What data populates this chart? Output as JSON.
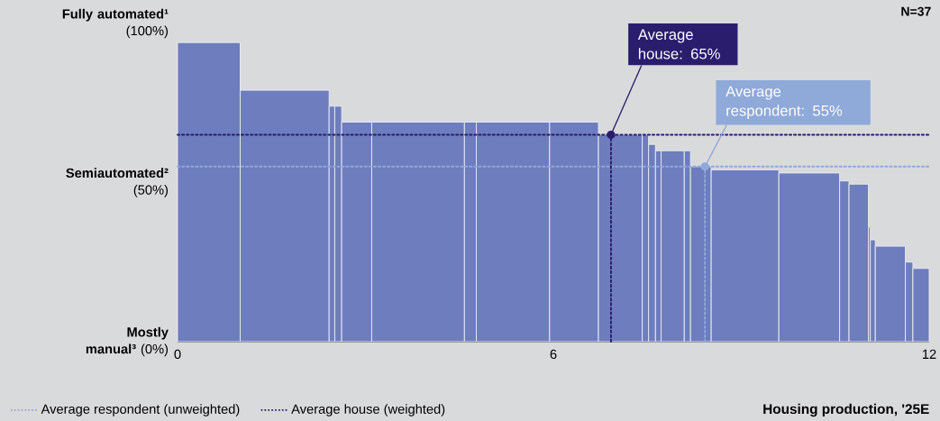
{
  "chart_data": {
    "type": "histogram",
    "bins": [
      0,
      1.0,
      2.42,
      2.51,
      2.62,
      3.1,
      4.58,
      4.77,
      5.94,
      6.72,
      7.42,
      7.52,
      7.63,
      7.72,
      8.09,
      8.19,
      8.52,
      9.6,
      10.57,
      10.72,
      11.03,
      11.06,
      11.14,
      11.62,
      11.74,
      12
    ],
    "values": [
      94,
      79,
      74,
      74,
      69,
      69,
      69,
      69,
      69,
      65,
      65,
      62,
      60,
      60,
      60,
      55,
      54,
      53,
      50.5,
      49.5,
      36,
      32,
      30,
      25,
      23
    ],
    "color": "#6d7dbd",
    "xlabel": "Housing production, '25E",
    "xlim": [
      0,
      12
    ],
    "xticks": [
      {
        "value": 0,
        "label": "0"
      },
      {
        "value": 6,
        "label": "6"
      },
      {
        "value": 12,
        "label": "12"
      }
    ],
    "ylim": [
      0,
      100
    ],
    "yticks": [
      {
        "value": 0,
        "label": "**Mostly manual³** (0%)"
      },
      {
        "value": 50,
        "label": "**Semiautomated²** (50%)"
      },
      {
        "value": 100,
        "label": "**Fully automated¹** (100%)"
      }
    ],
    "ref_lines": [
      {
        "axis": "y",
        "value": 55,
        "label": "Average respondent (unweighted)",
        "color": "#8fa9d8"
      },
      {
        "axis": "y",
        "value": 65,
        "label": "Average house (weighted)",
        "color": "#2a1d6e"
      },
      {
        "axis": "x",
        "value": 8.42,
        "color": "#8fa9d8"
      },
      {
        "axis": "x",
        "value": 6.92,
        "color": "#2a1d6e"
      }
    ],
    "line_style": "dotted",
    "legend": "bottom left",
    "annotations": [
      {
        "text": "Average respondent: 55%",
        "x": 8.42,
        "y": 55
      },
      {
        "text": "Average house: 65%",
        "x": 6.92,
        "y": 65
      },
      "N=37"
    ]
  }
}
